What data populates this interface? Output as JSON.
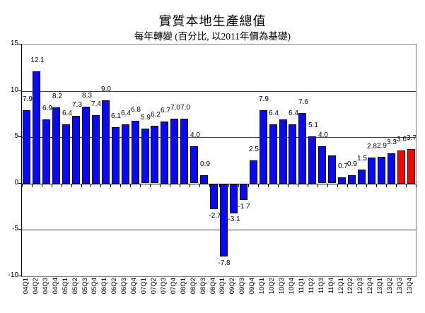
{
  "chart_data": {
    "type": "bar",
    "title": "實質本地生產總值",
    "subtitle": "每年轉變 (百分比, 以2011年價為基礎)",
    "categories": [
      "04Q1",
      "04Q2",
      "04Q3",
      "04Q4",
      "05Q1",
      "05Q2",
      "05Q3",
      "05Q4",
      "06Q1",
      "06Q2",
      "06Q3",
      "06Q4",
      "07Q1",
      "07Q2",
      "07Q3",
      "07Q4",
      "08Q1",
      "08Q2",
      "08Q3",
      "08Q4",
      "09Q1",
      "09Q2",
      "09Q3",
      "09Q4",
      "10Q1",
      "10Q2",
      "10Q3",
      "10Q4",
      "11Q1",
      "11Q2",
      "11Q3",
      "11Q4",
      "12Q1",
      "12Q2",
      "12Q3",
      "12Q4",
      "13Q1",
      "13Q2",
      "13Q3",
      "13Q4"
    ],
    "values": [
      7.9,
      12.1,
      6.9,
      8.2,
      6.4,
      7.3,
      8.3,
      7.4,
      9.0,
      6.1,
      6.4,
      6.8,
      5.9,
      6.2,
      6.7,
      7.0,
      7.0,
      4.0,
      0.9,
      -2.7,
      -7.8,
      -3.1,
      -1.7,
      2.5,
      7.9,
      6.4,
      6.9,
      6.4,
      7.6,
      5.1,
      4.0,
      3.0,
      0.7,
      0.9,
      1.5,
      2.8,
      2.9,
      3.3,
      3.6,
      3.7
    ],
    "data_labels": [
      "7.9",
      "12.1",
      "6.9",
      "8.2",
      "6.4",
      "7.3",
      "8.3",
      "7.4",
      "9.0",
      "6.1",
      "6.4",
      "6.8",
      "5.9",
      "6.2",
      "6.7",
      "7.0",
      "7.0",
      "4.0",
      "0.9",
      "-2.7",
      "-7.8",
      "-3.1",
      "-1.7",
      "2.5",
      "7.9",
      "6.4",
      "",
      "6.4",
      "7.6",
      "5.1",
      "4.0",
      "",
      "0.7",
      "0.9",
      "1.5",
      "2.8",
      "2.9",
      "3.3",
      "3.6",
      "3.7"
    ],
    "highlight_indices": [
      38,
      39
    ],
    "ylim": [
      -10,
      15
    ],
    "yticks": [
      15,
      10,
      5,
      0,
      -5,
      -10
    ],
    "ytick_labels": [
      "15",
      "10",
      "5",
      "0",
      "-5",
      "-10"
    ],
    "gridlines": [
      10,
      5,
      -5
    ],
    "legend_position": "none",
    "colors": {
      "bar_default": "#0808FF",
      "bar_highlight": "#FF0000",
      "bar_border": "#000000",
      "axis": "#000000",
      "gridline": "#404040",
      "plot_border": "#808080",
      "background": "#FFFFFF"
    }
  }
}
